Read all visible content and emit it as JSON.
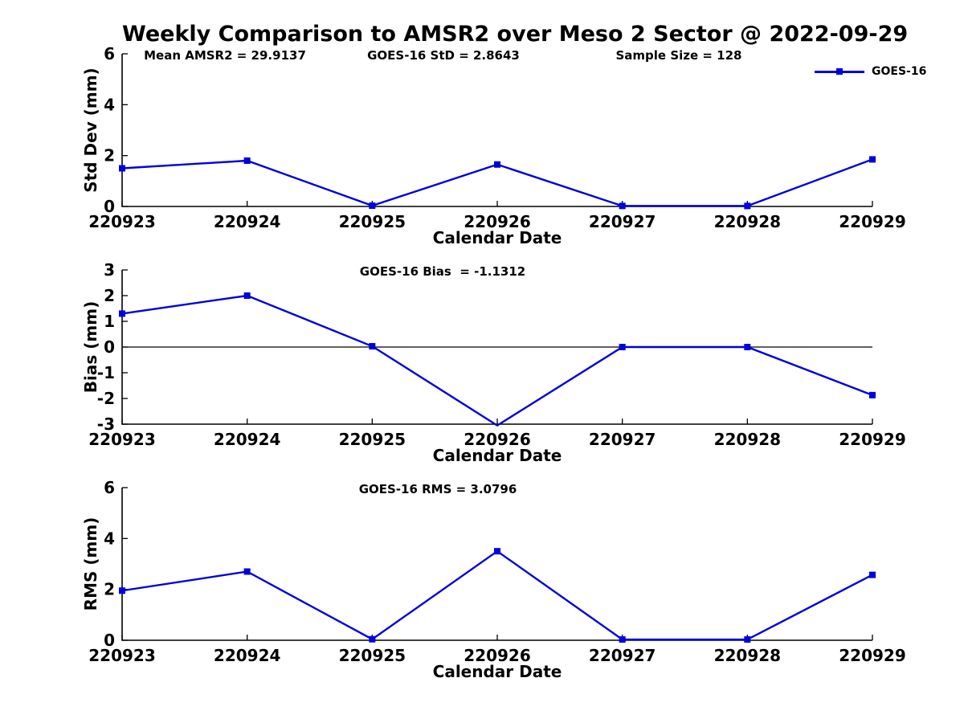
{
  "title": "Weekly Comparison to AMSR2 over Meso 2 Sector @ 2022-09-29",
  "legend": {
    "label": "GOES-16",
    "position": "top-right"
  },
  "colors": {
    "line": "#0000dd",
    "axis": "#000000",
    "text": "#000000",
    "background": "#ffffff"
  },
  "chart_data": [
    {
      "type": "line",
      "id": "std-dev",
      "series_name": "GOES-16",
      "marker": "square",
      "x": [
        "220923",
        "220924",
        "220925",
        "220926",
        "220927",
        "220928",
        "220929"
      ],
      "values": [
        1.5,
        1.8,
        0.03,
        1.65,
        0.02,
        0.02,
        1.85
      ],
      "annotations": [
        "Mean AMSR2 = 29.9137",
        "GOES-16 StD = 2.8643",
        "Sample Size = 128"
      ],
      "xlabel": "Calendar Date",
      "ylabel": "Std Dev (mm)",
      "ylim": [
        0,
        6
      ],
      "yticks": [
        0,
        2,
        4,
        6
      ],
      "grid": false,
      "zero_line": false
    },
    {
      "type": "line",
      "id": "bias",
      "series_name": "GOES-16",
      "marker": "square",
      "x": [
        "220923",
        "220924",
        "220925",
        "220926",
        "220927",
        "220928",
        "220929"
      ],
      "values": [
        1.3,
        2.0,
        0.03,
        -3.05,
        0.0,
        0.0,
        -1.87
      ],
      "annotations": [
        "GOES-16 Bias  = -1.1312"
      ],
      "xlabel": "Calendar Date",
      "ylabel": "Bias (mm)",
      "ylim": [
        -3,
        3
      ],
      "yticks": [
        -3,
        -2,
        -1,
        0,
        1,
        2,
        3
      ],
      "grid": false,
      "zero_line": true
    },
    {
      "type": "line",
      "id": "rms",
      "series_name": "GOES-16",
      "marker": "square",
      "x": [
        "220923",
        "220924",
        "220925",
        "220926",
        "220927",
        "220928",
        "220929"
      ],
      "values": [
        1.95,
        2.7,
        0.04,
        3.5,
        0.03,
        0.03,
        2.57
      ],
      "annotations": [
        "GOES-16 RMS = 3.0796"
      ],
      "xlabel": "Calendar Date",
      "ylabel": "RMS (mm)",
      "ylim": [
        0,
        6
      ],
      "yticks": [
        0,
        2,
        4,
        6
      ],
      "grid": false,
      "zero_line": false
    }
  ]
}
